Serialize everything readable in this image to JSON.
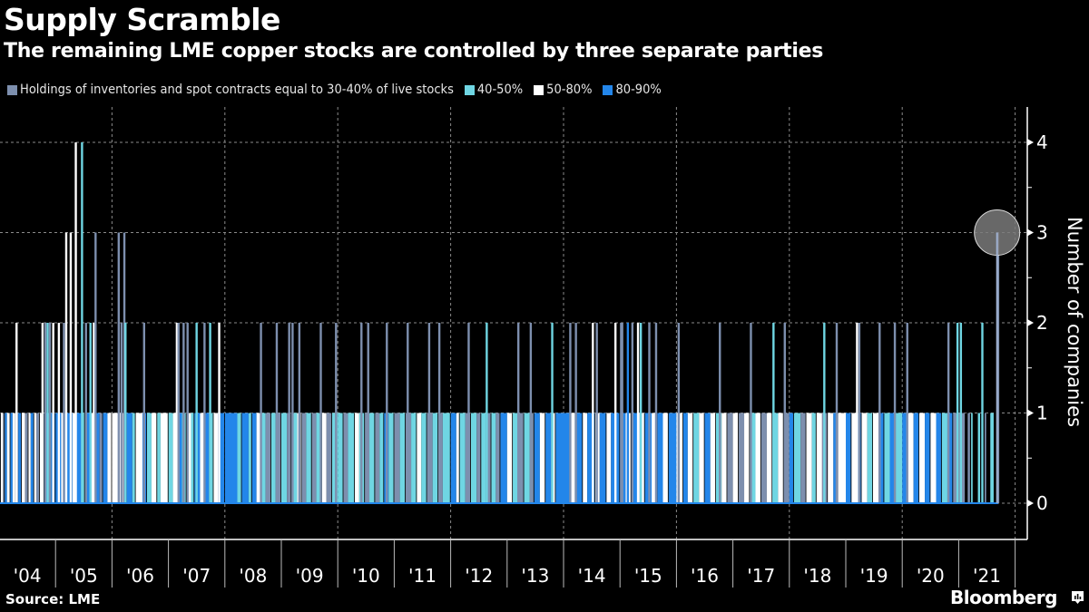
{
  "header": {
    "title": "Supply Scramble",
    "subtitle": "The remaining LME copper stocks are controlled by three separate parties"
  },
  "footer": {
    "source": "Source: LME",
    "brand": "Bloomberg",
    "brand_icon": "bloomberg-chart-icon"
  },
  "chart_data": {
    "type": "bar",
    "title": "Supply Scramble",
    "subtitle": "The remaining LME copper stocks are controlled by three separate parties",
    "xlabel": "",
    "ylabel": "Number of companies",
    "ylim": [
      -0.4,
      4.4
    ],
    "xlim": [
      2004,
      2021.95
    ],
    "y_ticks": [
      "0",
      "1",
      "2",
      "3",
      "4"
    ],
    "y_axis_position": "right",
    "x_tick_labels": [
      "'04",
      "'05",
      "'06",
      "'07",
      "'08",
      "'09",
      "'10",
      "'11",
      "'12",
      "'13",
      "'14",
      "'15",
      "'16",
      "'17",
      "'18",
      "'19",
      "'20",
      "'21"
    ],
    "grid": true,
    "legend_position": "top",
    "series": [
      {
        "name": "Holdings of inventories and spot contracts equal to 30-40% of live stocks",
        "color": "#7d8fae"
      },
      {
        "name": "40-50%",
        "color": "#6fd6e3"
      },
      {
        "name": "50-80%",
        "color": "#ffffff"
      },
      {
        "name": "80-90%",
        "color": "#2386ea"
      }
    ],
    "base_runs_note": "Daily series; value 1 runs given as [start_year, end_year, series_index]",
    "base_runs": [
      [
        2004.0,
        2004.03,
        0
      ],
      [
        2004.03,
        2004.07,
        2
      ],
      [
        2004.07,
        2004.1,
        0
      ],
      [
        2004.1,
        2004.14,
        3
      ],
      [
        2004.14,
        2004.2,
        2
      ],
      [
        2004.2,
        2004.24,
        3
      ],
      [
        2004.24,
        2004.3,
        2
      ],
      [
        2004.3,
        2004.34,
        0
      ],
      [
        2004.34,
        2004.4,
        3
      ],
      [
        2004.4,
        2004.46,
        2
      ],
      [
        2004.46,
        2004.52,
        0
      ],
      [
        2004.52,
        2004.56,
        2
      ],
      [
        2004.56,
        2004.62,
        3
      ],
      [
        2004.62,
        2004.66,
        2
      ],
      [
        2004.66,
        2004.72,
        0
      ],
      [
        2004.72,
        2004.78,
        2
      ],
      [
        2004.8,
        2004.86,
        3
      ],
      [
        2004.86,
        2004.92,
        1
      ],
      [
        2004.92,
        2005.0,
        3
      ],
      [
        2005.0,
        2005.1,
        3
      ],
      [
        2005.1,
        2005.16,
        2
      ],
      [
        2005.16,
        2005.3,
        3
      ],
      [
        2005.3,
        2005.36,
        2
      ],
      [
        2005.36,
        2005.46,
        3
      ],
      [
        2005.46,
        2005.52,
        1
      ],
      [
        2005.52,
        2005.62,
        3
      ],
      [
        2005.62,
        2005.68,
        2
      ],
      [
        2005.68,
        2005.78,
        3
      ],
      [
        2005.78,
        2005.84,
        0
      ],
      [
        2005.84,
        2005.92,
        3
      ],
      [
        2005.92,
        2006.0,
        2
      ],
      [
        2006.0,
        2006.2,
        2
      ],
      [
        2006.2,
        2006.26,
        0
      ],
      [
        2006.26,
        2006.36,
        3
      ],
      [
        2006.36,
        2006.42,
        1
      ],
      [
        2006.42,
        2006.54,
        2
      ],
      [
        2006.54,
        2006.62,
        3
      ],
      [
        2006.62,
        2006.7,
        1
      ],
      [
        2006.7,
        2006.8,
        2
      ],
      [
        2006.8,
        2006.86,
        1
      ],
      [
        2006.86,
        2007.0,
        2
      ],
      [
        2007.0,
        2007.08,
        1
      ],
      [
        2007.08,
        2007.16,
        2
      ],
      [
        2007.16,
        2007.24,
        3
      ],
      [
        2007.24,
        2007.32,
        1
      ],
      [
        2007.32,
        2007.4,
        2
      ],
      [
        2007.4,
        2007.46,
        1
      ],
      [
        2007.46,
        2007.56,
        3
      ],
      [
        2007.56,
        2007.64,
        2
      ],
      [
        2007.64,
        2007.72,
        3
      ],
      [
        2007.72,
        2007.8,
        1
      ],
      [
        2007.8,
        2007.88,
        2
      ],
      [
        2007.88,
        2008.0,
        3
      ],
      [
        2008.0,
        2008.22,
        3
      ],
      [
        2008.22,
        2008.3,
        1
      ],
      [
        2008.3,
        2008.42,
        3
      ],
      [
        2008.42,
        2008.48,
        1
      ],
      [
        2008.48,
        2008.56,
        3
      ],
      [
        2008.56,
        2008.64,
        2
      ],
      [
        2008.64,
        2008.72,
        1
      ],
      [
        2008.72,
        2008.82,
        0
      ],
      [
        2008.82,
        2008.9,
        1
      ],
      [
        2008.9,
        2009.0,
        0
      ],
      [
        2009.0,
        2009.1,
        1
      ],
      [
        2009.1,
        2009.18,
        0
      ],
      [
        2009.18,
        2009.28,
        1
      ],
      [
        2009.28,
        2009.36,
        2
      ],
      [
        2009.36,
        2009.44,
        0
      ],
      [
        2009.44,
        2009.54,
        1
      ],
      [
        2009.54,
        2009.62,
        0
      ],
      [
        2009.62,
        2009.72,
        1
      ],
      [
        2009.72,
        2009.8,
        2
      ],
      [
        2009.8,
        2009.9,
        0
      ],
      [
        2009.9,
        2010.0,
        1
      ],
      [
        2010.0,
        2010.1,
        1
      ],
      [
        2010.1,
        2010.18,
        0
      ],
      [
        2010.18,
        2010.3,
        1
      ],
      [
        2010.3,
        2010.38,
        2
      ],
      [
        2010.38,
        2010.48,
        1
      ],
      [
        2010.48,
        2010.56,
        0
      ],
      [
        2010.56,
        2010.66,
        1
      ],
      [
        2010.66,
        2010.74,
        0
      ],
      [
        2010.74,
        2010.82,
        1
      ],
      [
        2010.82,
        2010.9,
        3
      ],
      [
        2010.9,
        2011.0,
        1
      ],
      [
        2011.0,
        2011.1,
        0
      ],
      [
        2011.1,
        2011.2,
        1
      ],
      [
        2011.2,
        2011.3,
        0
      ],
      [
        2011.3,
        2011.4,
        1
      ],
      [
        2011.4,
        2011.48,
        2
      ],
      [
        2011.48,
        2011.58,
        1
      ],
      [
        2011.58,
        2011.68,
        0
      ],
      [
        2011.68,
        2011.78,
        1
      ],
      [
        2011.78,
        2011.86,
        0
      ],
      [
        2011.86,
        2012.0,
        1
      ],
      [
        2012.0,
        2012.1,
        3
      ],
      [
        2012.1,
        2012.16,
        2
      ],
      [
        2012.16,
        2012.26,
        1
      ],
      [
        2012.26,
        2012.36,
        0
      ],
      [
        2012.36,
        2012.46,
        1
      ],
      [
        2012.46,
        2012.54,
        0
      ],
      [
        2012.54,
        2012.62,
        1
      ],
      [
        2012.62,
        2012.72,
        0
      ],
      [
        2012.72,
        2012.8,
        1
      ],
      [
        2012.8,
        2012.88,
        0
      ],
      [
        2012.88,
        2013.0,
        3
      ],
      [
        2013.0,
        2013.1,
        2
      ],
      [
        2013.1,
        2013.2,
        1
      ],
      [
        2013.2,
        2013.3,
        0
      ],
      [
        2013.3,
        2013.4,
        1
      ],
      [
        2013.4,
        2013.48,
        0
      ],
      [
        2013.48,
        2013.58,
        3
      ],
      [
        2013.58,
        2013.68,
        2
      ],
      [
        2013.68,
        2013.78,
        3
      ],
      [
        2013.78,
        2013.86,
        2
      ],
      [
        2013.86,
        2014.0,
        3
      ],
      [
        2014.0,
        2014.12,
        3
      ],
      [
        2014.12,
        2014.2,
        2
      ],
      [
        2014.2,
        2014.34,
        3
      ],
      [
        2014.34,
        2014.42,
        2
      ],
      [
        2014.42,
        2014.56,
        3
      ],
      [
        2014.56,
        2014.64,
        2
      ],
      [
        2014.64,
        2014.76,
        3
      ],
      [
        2014.76,
        2014.84,
        2
      ],
      [
        2014.84,
        2015.0,
        3
      ],
      [
        2015.0,
        2015.1,
        3
      ],
      [
        2015.1,
        2015.2,
        2
      ],
      [
        2015.2,
        2015.34,
        3
      ],
      [
        2015.34,
        2015.44,
        2
      ],
      [
        2015.44,
        2015.56,
        3
      ],
      [
        2015.56,
        2015.66,
        2
      ],
      [
        2015.66,
        2015.76,
        3
      ],
      [
        2015.76,
        2015.86,
        2
      ],
      [
        2015.86,
        2016.0,
        3
      ],
      [
        2016.0,
        2016.12,
        2
      ],
      [
        2016.12,
        2016.2,
        3
      ],
      [
        2016.2,
        2016.3,
        2
      ],
      [
        2016.3,
        2016.4,
        1
      ],
      [
        2016.4,
        2016.5,
        2
      ],
      [
        2016.5,
        2016.6,
        3
      ],
      [
        2016.6,
        2016.7,
        2
      ],
      [
        2016.7,
        2016.8,
        1
      ],
      [
        2016.8,
        2016.9,
        2
      ],
      [
        2016.9,
        2017.0,
        0
      ],
      [
        2017.0,
        2017.1,
        2
      ],
      [
        2017.1,
        2017.2,
        0
      ],
      [
        2017.2,
        2017.3,
        2
      ],
      [
        2017.3,
        2017.4,
        1
      ],
      [
        2017.4,
        2017.5,
        2
      ],
      [
        2017.5,
        2017.6,
        0
      ],
      [
        2017.6,
        2017.7,
        2
      ],
      [
        2017.7,
        2017.8,
        1
      ],
      [
        2017.8,
        2017.9,
        2
      ],
      [
        2017.9,
        2018.0,
        0
      ],
      [
        2018.0,
        2018.08,
        3
      ],
      [
        2018.08,
        2018.2,
        1
      ],
      [
        2018.2,
        2018.3,
        0
      ],
      [
        2018.3,
        2018.4,
        2
      ],
      [
        2018.4,
        2018.48,
        1
      ],
      [
        2018.48,
        2018.58,
        2
      ],
      [
        2018.58,
        2018.68,
        0
      ],
      [
        2018.68,
        2018.78,
        2
      ],
      [
        2018.78,
        2018.86,
        3
      ],
      [
        2018.86,
        2019.0,
        2
      ],
      [
        2019.0,
        2019.1,
        3
      ],
      [
        2019.1,
        2019.2,
        2
      ],
      [
        2019.2,
        2019.28,
        3
      ],
      [
        2019.28,
        2019.38,
        2
      ],
      [
        2019.38,
        2019.48,
        1
      ],
      [
        2019.48,
        2019.58,
        2
      ],
      [
        2019.58,
        2019.68,
        3
      ],
      [
        2019.68,
        2019.78,
        1
      ],
      [
        2019.78,
        2019.88,
        3
      ],
      [
        2019.88,
        2020.0,
        1
      ],
      [
        2020.0,
        2020.1,
        3
      ],
      [
        2020.1,
        2020.2,
        2
      ],
      [
        2020.2,
        2020.3,
        3
      ],
      [
        2020.3,
        2020.4,
        2
      ],
      [
        2020.4,
        2020.5,
        3
      ],
      [
        2020.5,
        2020.6,
        2
      ],
      [
        2020.6,
        2020.7,
        3
      ],
      [
        2020.7,
        2020.8,
        1
      ],
      [
        2020.8,
        2020.9,
        3
      ],
      [
        2020.9,
        2021.0,
        0
      ],
      [
        2021.0,
        2021.12,
        0
      ],
      [
        2021.16,
        2021.2,
        0
      ],
      [
        2021.22,
        2021.26,
        1
      ],
      [
        2021.34,
        2021.38,
        1
      ],
      [
        2021.46,
        2021.5,
        0
      ],
      [
        2021.56,
        2021.62,
        1
      ]
    ],
    "tall_bars_note": "Individual bars exceeding 1: [year_position, value, series_index]",
    "tall_bars": [
      [
        2004.29,
        2,
        2
      ],
      [
        2004.75,
        2,
        2
      ],
      [
        2004.8,
        2,
        0
      ],
      [
        2004.84,
        2,
        1
      ],
      [
        2004.88,
        2,
        0
      ],
      [
        2004.94,
        2,
        2
      ],
      [
        2005.04,
        2,
        2
      ],
      [
        2005.13,
        2,
        0
      ],
      [
        2005.17,
        3,
        2
      ],
      [
        2005.25,
        3,
        2
      ],
      [
        2005.34,
        4,
        2
      ],
      [
        2005.45,
        4,
        1
      ],
      [
        2005.52,
        2,
        0
      ],
      [
        2005.6,
        2,
        1
      ],
      [
        2005.66,
        2,
        2
      ],
      [
        2005.69,
        3,
        0
      ],
      [
        2006.1,
        3,
        0
      ],
      [
        2006.15,
        2,
        0
      ],
      [
        2006.2,
        3,
        0
      ],
      [
        2006.22,
        2,
        1
      ],
      [
        2006.55,
        2,
        0
      ],
      [
        2007.13,
        2,
        2
      ],
      [
        2007.16,
        2,
        0
      ],
      [
        2007.25,
        2,
        0
      ],
      [
        2007.32,
        2,
        0
      ],
      [
        2007.48,
        2,
        1
      ],
      [
        2007.62,
        2,
        0
      ],
      [
        2007.72,
        2,
        1
      ],
      [
        2007.88,
        2,
        2
      ],
      [
        2008.62,
        2,
        0
      ],
      [
        2008.9,
        2,
        0
      ],
      [
        2009.12,
        2,
        0
      ],
      [
        2009.18,
        2,
        0
      ],
      [
        2009.3,
        2,
        0
      ],
      [
        2009.68,
        2,
        0
      ],
      [
        2009.95,
        2,
        0
      ],
      [
        2010.4,
        2,
        0
      ],
      [
        2010.52,
        2,
        0
      ],
      [
        2010.85,
        2,
        0
      ],
      [
        2011.22,
        2,
        0
      ],
      [
        2011.6,
        2,
        0
      ],
      [
        2011.78,
        2,
        0
      ],
      [
        2012.3,
        2,
        0
      ],
      [
        2012.62,
        2,
        1
      ],
      [
        2013.18,
        2,
        0
      ],
      [
        2013.4,
        2,
        0
      ],
      [
        2013.78,
        2,
        1
      ],
      [
        2014.1,
        2,
        0
      ],
      [
        2014.2,
        2,
        0
      ],
      [
        2014.5,
        2,
        2
      ],
      [
        2014.57,
        2,
        0
      ],
      [
        2014.9,
        2,
        2
      ],
      [
        2015.0,
        2,
        0
      ],
      [
        2015.02,
        2,
        0
      ],
      [
        2015.12,
        2,
        3
      ],
      [
        2015.2,
        2,
        0
      ],
      [
        2015.3,
        2,
        2
      ],
      [
        2015.35,
        2,
        1
      ],
      [
        2015.5,
        2,
        0
      ],
      [
        2015.62,
        2,
        0
      ],
      [
        2016.02,
        2,
        0
      ],
      [
        2016.75,
        2,
        0
      ],
      [
        2017.3,
        2,
        0
      ],
      [
        2017.7,
        2,
        1
      ],
      [
        2017.9,
        2,
        0
      ],
      [
        2018.6,
        2,
        1
      ],
      [
        2018.82,
        2,
        0
      ],
      [
        2019.18,
        2,
        2
      ],
      [
        2019.22,
        2,
        0
      ],
      [
        2019.58,
        2,
        0
      ],
      [
        2019.85,
        2,
        0
      ],
      [
        2020.07,
        2,
        0
      ],
      [
        2020.8,
        2,
        0
      ],
      [
        2020.96,
        2,
        1
      ],
      [
        2021.02,
        2,
        1
      ],
      [
        2021.4,
        2,
        1
      ],
      [
        2021.68,
        3,
        0
      ]
    ],
    "highlight": {
      "year_position": 2021.68,
      "value": 3,
      "note": "latest reading highlighted with a grey circle"
    }
  }
}
